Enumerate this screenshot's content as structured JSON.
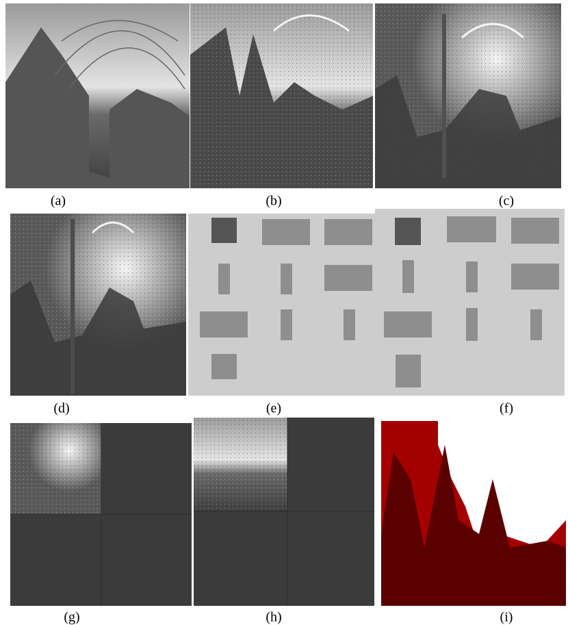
{
  "figure": {
    "panels": [
      {
        "caption": "(a)"
      },
      {
        "caption": "(b)"
      },
      {
        "caption": "(c)"
      },
      {
        "caption": "(d)"
      },
      {
        "caption": "(e)"
      },
      {
        "caption": "(f)"
      },
      {
        "caption": "(g)"
      },
      {
        "caption": "(h)"
      },
      {
        "caption": "(i)"
      }
    ]
  }
}
